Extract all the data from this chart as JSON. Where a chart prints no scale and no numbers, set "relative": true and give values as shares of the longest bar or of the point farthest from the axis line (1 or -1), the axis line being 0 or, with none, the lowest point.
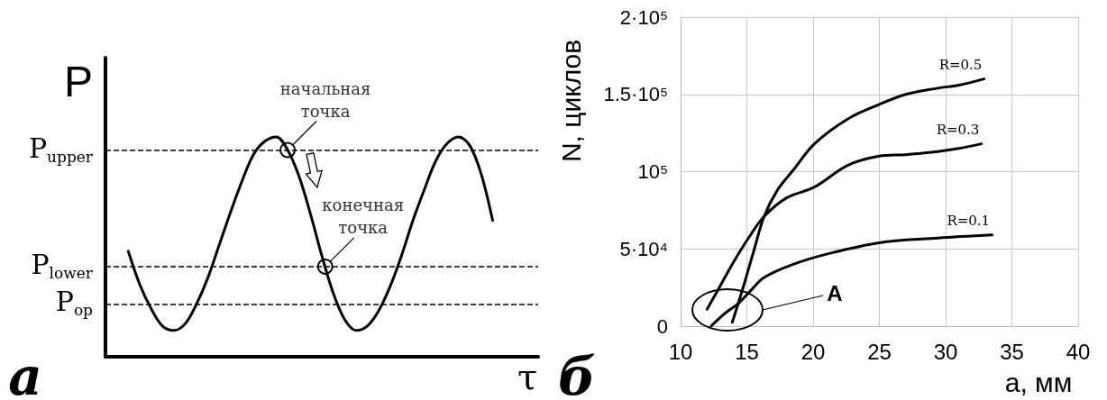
{
  "chart_data": [
    {
      "type": "line",
      "relative": true,
      "xlabel": "τ",
      "ylabel": "P",
      "grid": false,
      "legend": false,
      "marker": "none",
      "line_style": "solid",
      "categories": [
        null,
        null,
        null,
        null,
        null,
        null,
        null,
        null,
        null,
        null,
        null,
        null,
        null,
        null,
        null,
        null,
        null,
        null,
        null,
        null,
        null,
        null,
        null,
        null,
        null,
        null,
        null,
        null,
        null,
        null,
        null,
        null,
        null,
        null,
        null,
        null,
        null,
        null,
        null
      ],
      "series": [
        {
          "color": "#000000",
          "values": [
            null,
            null,
            0.48,
            0.33,
            0.22,
            0.14,
            0.12,
            0.15,
            0.24,
            0.36,
            0.51,
            0.66,
            0.8,
            0.92,
            0.98,
            1.0,
            0.94,
            0.82,
            0.65,
            0.46,
            0.29,
            0.17,
            0.12,
            0.14,
            0.21,
            0.32,
            0.46,
            0.62,
            0.76,
            0.89,
            0.97,
            1.0,
            0.96,
            0.83,
            0.62,
            null,
            null,
            null,
            null
          ]
        }
      ],
      "ref_lines": [
        {
          "axis": "y",
          "value": 0.94,
          "label": "P$_{upper}$",
          "line_style": "dashed",
          "color": "#000000"
        },
        {
          "axis": "y",
          "value": 0.41,
          "label": "P$_{lower}$",
          "line_style": "dashed",
          "color": "#000000"
        },
        {
          "axis": "y",
          "value": 0.24,
          "label": "P$_{op}$",
          "line_style": "dashed",
          "color": "#000000"
        }
      ],
      "annotations": [
        "а",
        {
          "text": "начальная точка",
          "y": 0.94
        },
        {
          "text": "конечная точка",
          "y": 0.41
        }
      ]
    },
    {
      "type": "line",
      "xlabel": "а, мм",
      "ylabel": "N, циклов",
      "grid": true,
      "legend": false,
      "marker": "none",
      "line_style": "solid",
      "xlim": [
        10,
        40
      ],
      "xticks": [
        10,
        15,
        20,
        25,
        30,
        35,
        40
      ],
      "ylim": [
        0,
        200000
      ],
      "yticks": [
        0,
        {
          "value": 50000,
          "label": "5·10⁴"
        },
        {
          "value": 100000,
          "label": "10⁵"
        },
        {
          "value": 150000,
          "label": "1.5·10⁵"
        },
        {
          "value": 200000,
          "label": "2·10⁵"
        }
      ],
      "series": [
        {
          "name": "R=0.5",
          "color": "#000000",
          "x": [
            13.9,
            14.7,
            15.5,
            16.3,
            17.3,
            18.5,
            20.1,
            22.6,
            25,
            27,
            29.4,
            31,
            32.9
          ],
          "values": [
            2500,
            24500,
            48000,
            71000,
            88000,
            101000,
            118000,
            134000,
            143500,
            150000,
            154000,
            156000,
            160000
          ]
        },
        {
          "name": "R=0.3",
          "color": "#000000",
          "x": [
            12,
            13.05,
            14.1,
            15.2,
            16.3,
            18,
            20.1,
            22.6,
            25,
            27,
            29.4,
            31,
            32.7
          ],
          "values": [
            11000,
            27000,
            43000,
            58000,
            71000,
            83000,
            90000,
            104000,
            110000,
            111000,
            113000,
            115000,
            118000
          ]
        },
        {
          "name": "R=0.1",
          "color": "#000000",
          "x": [
            12.3,
            13.3,
            14.4,
            15.4,
            16.3,
            18.5,
            21.2,
            25,
            29.4,
            33.5
          ],
          "values": [
            0,
            8000,
            15000,
            24000,
            31500,
            40000,
            47000,
            54000,
            57000,
            59000
          ]
        }
      ],
      "annotations": [
        "б",
        "A"
      ]
    }
  ]
}
